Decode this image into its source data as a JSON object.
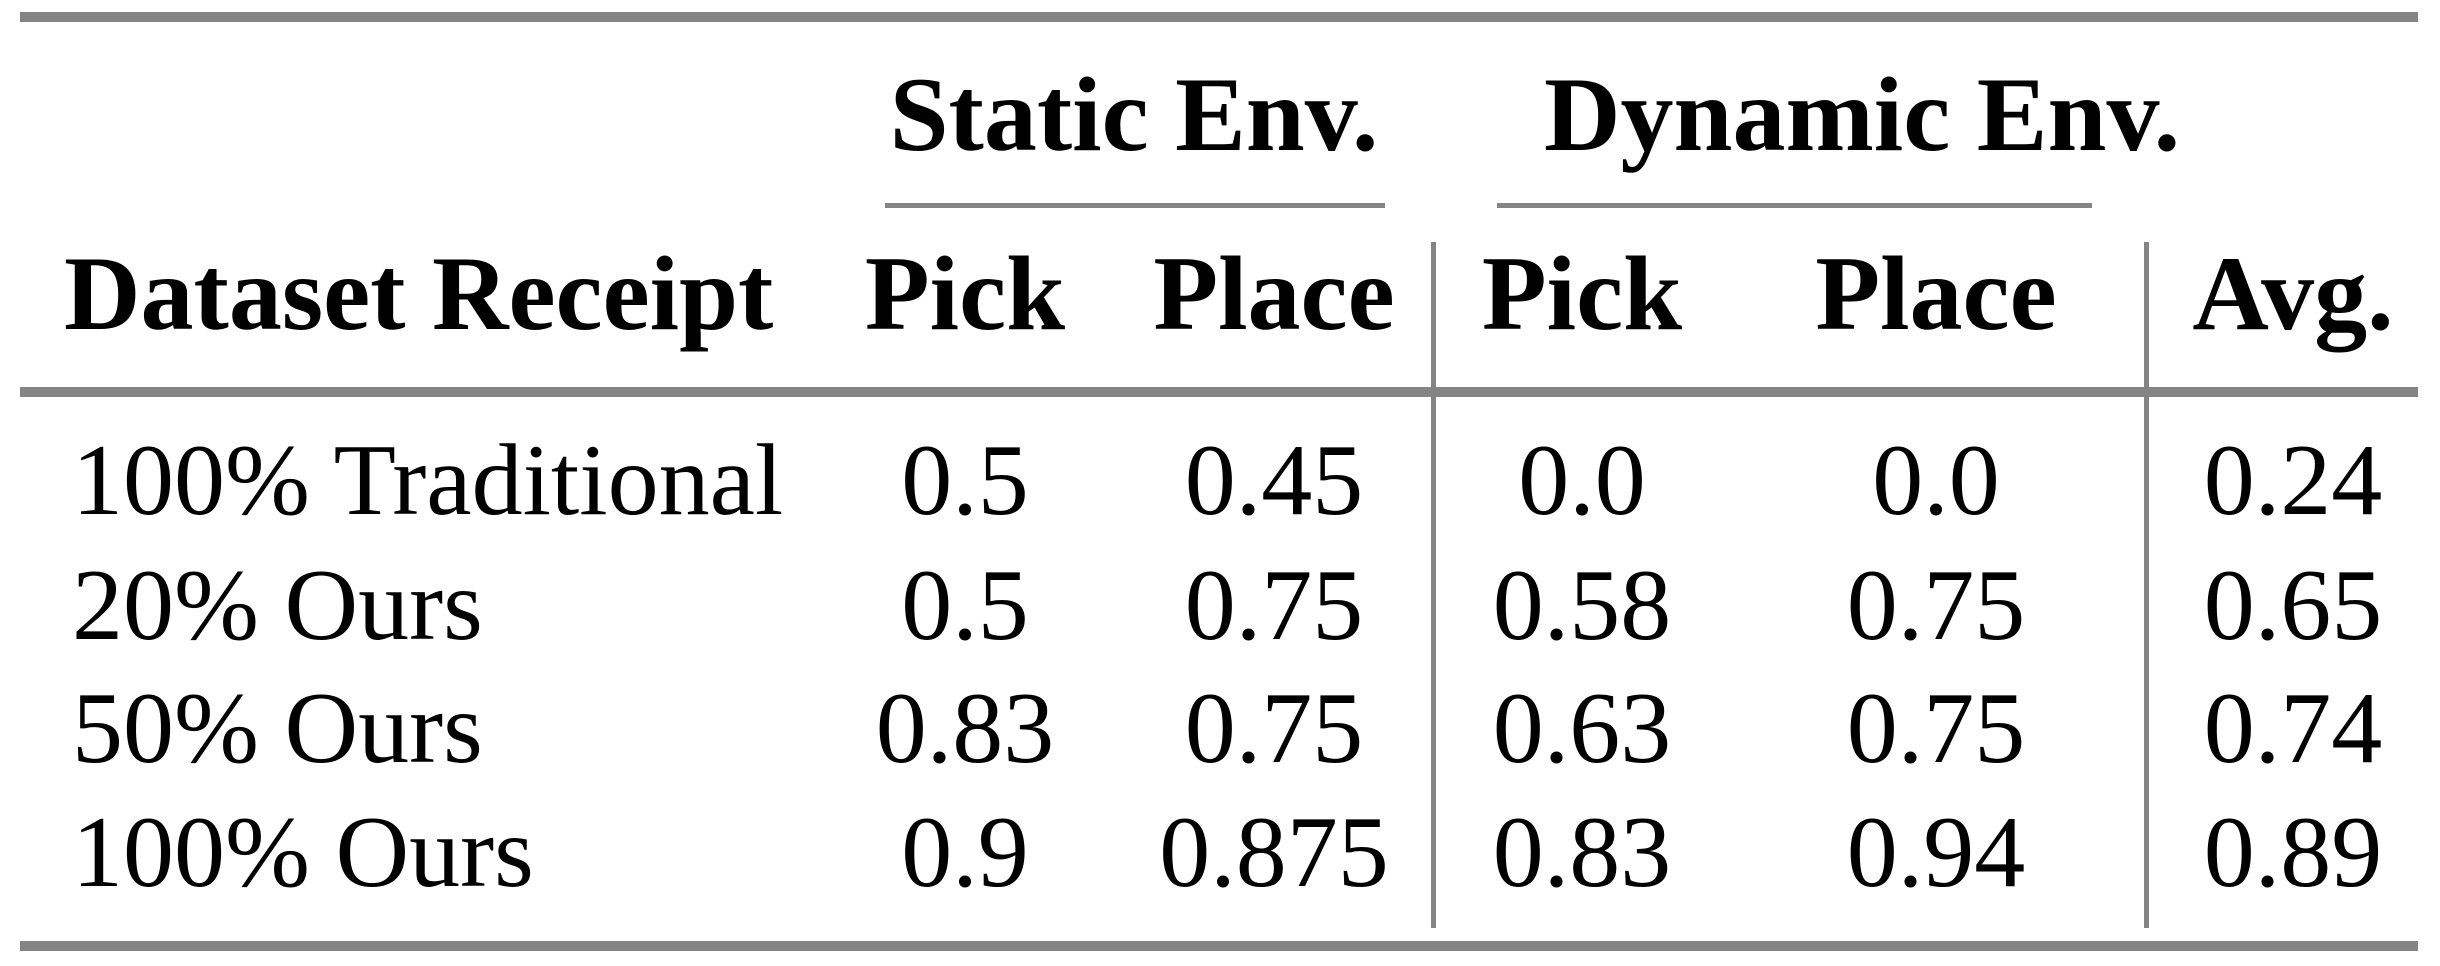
{
  "table": {
    "header": {
      "row_label": "Dataset Receipt",
      "groups": {
        "static": "Static Env.",
        "dynamic": "Dynamic Env."
      },
      "subcolumns": {
        "static_pick": "Pick",
        "static_place": "Place",
        "dynamic_pick": "Pick",
        "dynamic_place": "Place",
        "avg": "Avg."
      }
    },
    "rows": [
      {
        "label": "100% Traditional",
        "static_pick": "0.5",
        "static_place": "0.45",
        "dynamic_pick": "0.0",
        "dynamic_place": "0.0",
        "avg": "0.24"
      },
      {
        "label": "20% Ours",
        "static_pick": "0.5",
        "static_place": "0.75",
        "dynamic_pick": "0.58",
        "dynamic_place": "0.75",
        "avg": "0.65"
      },
      {
        "label": "50% Ours",
        "static_pick": "0.83",
        "static_place": "0.75",
        "dynamic_pick": "0.63",
        "dynamic_place": "0.75",
        "avg": "0.74"
      },
      {
        "label": "100% Ours",
        "static_pick": "0.9",
        "static_place": "0.875",
        "dynamic_pick": "0.83",
        "dynamic_place": "0.94",
        "avg": "0.89"
      }
    ],
    "colors": {
      "rule_gray": "#848484",
      "text": "#000000",
      "background": "#ffffff"
    }
  },
  "chart_data": {
    "type": "table",
    "columns": [
      "Dataset Receipt",
      "Static Env. Pick",
      "Static Env. Place",
      "Dynamic Env. Pick",
      "Dynamic Env. Place",
      "Avg."
    ],
    "rows": [
      [
        "100% Traditional",
        0.5,
        0.45,
        0.0,
        0.0,
        0.24
      ],
      [
        "20% Ours",
        0.5,
        0.75,
        0.58,
        0.75,
        0.65
      ],
      [
        "50% Ours",
        0.83,
        0.75,
        0.63,
        0.75,
        0.74
      ],
      [
        "100% Ours",
        0.9,
        0.875,
        0.83,
        0.94,
        0.89
      ]
    ]
  }
}
